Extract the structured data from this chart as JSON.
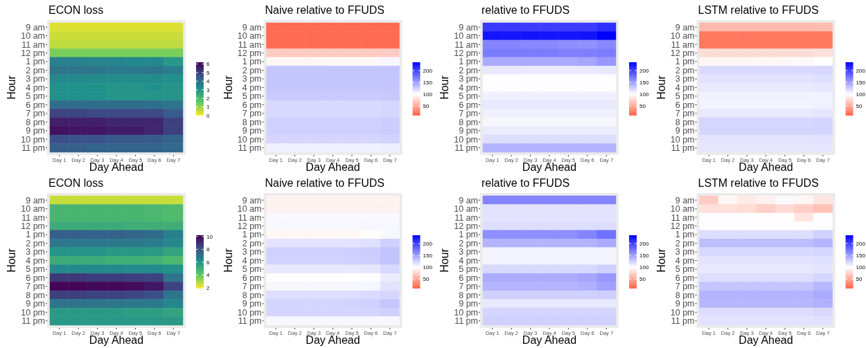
{
  "chart_data": [
    {
      "type": "heatmap",
      "title": "ECON loss",
      "xlabel": "Day Ahead",
      "ylabel": "Hour",
      "categories": [
        "Day 1",
        "Day 2",
        "Day 3",
        "Day 4",
        "Day 5",
        "Day 6",
        "Day 7"
      ],
      "y_categories": [
        "9 am",
        "10 am",
        "11 am",
        "12 pm",
        "1 pm",
        "2 pm",
        "3 pm",
        "4 pm",
        "5 pm",
        "6 pm",
        "7 pm",
        "8 pm",
        "9 pm",
        "10 pm",
        "11 pm"
      ],
      "clim": [
        0,
        6.2
      ],
      "cticks": [
        0,
        1,
        2,
        3,
        4,
        5,
        6
      ],
      "colors": [
        "#fde725",
        "#5ec962",
        "#21918c",
        "#3b528b",
        "#440154"
      ],
      "cells": [
        [
          0.3,
          0.3,
          0.3,
          0.3,
          0.3,
          0.3,
          0.3
        ],
        [
          0.5,
          0.5,
          0.5,
          0.5,
          0.5,
          0.5,
          0.5
        ],
        [
          0.6,
          0.6,
          0.6,
          0.6,
          0.6,
          0.6,
          0.6
        ],
        [
          1.3,
          1.3,
          1.3,
          1.3,
          1.3,
          1.3,
          1.3
        ],
        [
          3.5,
          3.5,
          3.4,
          3.4,
          3.3,
          3.3,
          2.9
        ],
        [
          3.8,
          3.8,
          3.8,
          3.7,
          3.7,
          3.8,
          3.6
        ],
        [
          3.3,
          3.3,
          3.2,
          3.2,
          3.2,
          3.2,
          3.1
        ],
        [
          3.1,
          3.1,
          3.1,
          3.0,
          3.0,
          3.1,
          3.0
        ],
        [
          3.1,
          3.1,
          3.1,
          3.0,
          3.0,
          3.0,
          3.0
        ],
        [
          4.0,
          4.0,
          4.0,
          4.0,
          4.0,
          3.9,
          3.8
        ],
        [
          4.9,
          4.9,
          4.8,
          4.8,
          4.8,
          4.8,
          4.4
        ],
        [
          5.6,
          5.6,
          5.6,
          5.5,
          5.5,
          5.5,
          5.0
        ],
        [
          5.9,
          5.8,
          5.8,
          5.7,
          5.7,
          5.5,
          5.0
        ],
        [
          4.7,
          4.6,
          4.6,
          4.5,
          4.5,
          4.4,
          4.2
        ],
        [
          4.3,
          4.3,
          4.2,
          4.2,
          4.2,
          4.2,
          4.1
        ]
      ]
    },
    {
      "type": "heatmap",
      "title": "Naive relative to FFUDS",
      "xlabel": "Day Ahead",
      "ylabel": "Hour",
      "categories": [
        "Day 1",
        "Day 2",
        "Day 3",
        "Day 4",
        "Day 5",
        "Day 6",
        "Day 7"
      ],
      "y_categories": [
        "9 am",
        "10 am",
        "11 am",
        "12 pm",
        "1 pm",
        "2 pm",
        "3 pm",
        "4 pm",
        "5 pm",
        "6 pm",
        "7 pm",
        "8 pm",
        "9 pm",
        "10 pm",
        "11 pm"
      ],
      "clim": [
        10,
        235
      ],
      "cticks": [
        50,
        100,
        150,
        200
      ],
      "colors": [
        "#ff6347",
        "#ffffff",
        "#0000ff"
      ],
      "cells": [
        [
          15,
          15,
          15,
          15,
          15,
          15,
          15
        ],
        [
          15,
          15,
          15,
          15,
          15,
          15,
          15
        ],
        [
          15,
          15,
          15,
          15,
          15,
          15,
          15
        ],
        [
          70,
          70,
          70,
          70,
          70,
          70,
          70
        ],
        [
          95,
          95,
          95,
          96,
          96,
          96,
          104
        ],
        [
          130,
          130,
          130,
          130,
          130,
          130,
          131
        ],
        [
          130,
          130,
          130,
          130,
          130,
          130,
          131
        ],
        [
          130,
          130,
          130,
          130,
          130,
          130,
          130
        ],
        [
          128,
          128,
          128,
          128,
          128,
          128,
          129
        ],
        [
          120,
          120,
          120,
          120,
          120,
          120,
          122
        ],
        [
          120,
          120,
          120,
          120,
          120,
          120,
          122
        ],
        [
          125,
          125,
          125,
          125,
          125,
          125,
          127
        ],
        [
          125,
          125,
          125,
          125,
          125,
          125,
          127
        ],
        [
          122,
          122,
          122,
          122,
          122,
          122,
          124
        ],
        [
          108,
          108,
          108,
          108,
          108,
          108,
          109
        ]
      ]
    },
    {
      "type": "heatmap",
      "title": "relative to FFUDS",
      "xlabel": "Day Ahead",
      "ylabel": "Hour",
      "categories": [
        "Day 1",
        "Day 2",
        "Day 3",
        "Day 4",
        "Day 5",
        "Day 6",
        "Day 7"
      ],
      "y_categories": [
        "9 am",
        "10 am",
        "11 am",
        "12 pm",
        "1 pm",
        "2 pm",
        "3 pm",
        "4 pm",
        "5 pm",
        "6 pm",
        "7 pm",
        "8 pm",
        "9 pm",
        "10 pm",
        "11 pm"
      ],
      "clim": [
        10,
        235
      ],
      "cticks": [
        50,
        100,
        150,
        200
      ],
      "colors": [
        "#ff6347",
        "#ffffff",
        "#0000ff"
      ],
      "cells": [
        [
          205,
          205,
          203,
          203,
          203,
          203,
          210
        ],
        [
          225,
          225,
          225,
          224,
          224,
          225,
          235
        ],
        [
          165,
          165,
          163,
          163,
          160,
          158,
          163
        ],
        [
          170,
          170,
          170,
          170,
          168,
          168,
          170
        ],
        [
          145,
          145,
          145,
          145,
          145,
          147,
          155
        ],
        [
          112,
          112,
          111,
          111,
          111,
          111,
          112
        ],
        [
          101,
          101,
          101,
          101,
          101,
          101,
          101
        ],
        [
          101,
          101,
          101,
          101,
          101,
          101,
          101
        ],
        [
          108,
          108,
          108,
          108,
          108,
          108,
          108
        ],
        [
          112,
          112,
          112,
          112,
          112,
          112,
          112
        ],
        [
          108,
          108,
          108,
          108,
          108,
          108,
          108
        ],
        [
          104,
          104,
          104,
          104,
          104,
          104,
          104
        ],
        [
          110,
          110,
          110,
          110,
          110,
          110,
          110
        ],
        [
          118,
          118,
          118,
          118,
          118,
          118,
          118
        ],
        [
          140,
          140,
          140,
          140,
          140,
          140,
          140
        ]
      ]
    },
    {
      "type": "heatmap",
      "title": "LSTM relative to FFUDS",
      "xlabel": "Day Ahead",
      "ylabel": "Hour",
      "categories": [
        "Day 1",
        "Day 2",
        "Day 3",
        "Day 4",
        "Day 5",
        "Day 6",
        "Day 7"
      ],
      "y_categories": [
        "9 am",
        "10 am",
        "11 am",
        "12 pm",
        "1 pm",
        "2 pm",
        "3 pm",
        "4 pm",
        "5 pm",
        "6 pm",
        "7 pm",
        "8 pm",
        "9 pm",
        "10 pm",
        "11 pm"
      ],
      "clim": [
        10,
        235
      ],
      "cticks": [
        50,
        100,
        150,
        200
      ],
      "colors": [
        "#ff6347",
        "#ffffff",
        "#0000ff"
      ],
      "cells": [
        [
          60,
          60,
          60,
          60,
          60,
          60,
          62
        ],
        [
          22,
          22,
          22,
          22,
          22,
          22,
          22
        ],
        [
          22,
          22,
          22,
          22,
          22,
          22,
          22
        ],
        [
          80,
          80,
          80,
          80,
          80,
          80,
          82
        ],
        [
          95,
          95,
          95,
          96,
          96,
          97,
          100
        ],
        [
          120,
          120,
          120,
          120,
          120,
          120,
          121
        ],
        [
          115,
          115,
          115,
          115,
          115,
          115,
          117
        ],
        [
          112,
          112,
          112,
          112,
          112,
          112,
          113
        ],
        [
          107,
          107,
          107,
          107,
          107,
          107,
          108
        ],
        [
          106,
          106,
          106,
          106,
          106,
          106,
          107
        ],
        [
          112,
          112,
          112,
          112,
          112,
          112,
          114
        ],
        [
          122,
          122,
          122,
          122,
          122,
          122,
          123
        ],
        [
          122,
          122,
          122,
          122,
          122,
          122,
          123
        ],
        [
          115,
          115,
          115,
          115,
          115,
          115,
          116
        ],
        [
          113,
          113,
          113,
          113,
          113,
          113,
          114
        ]
      ]
    },
    {
      "type": "heatmap",
      "title": "ECON loss",
      "xlabel": "Day Ahead",
      "ylabel": "Hour",
      "categories": [
        "Day 1",
        "Day 2",
        "Day 3",
        "Day 4",
        "Day 5",
        "Day 6",
        "Day 7"
      ],
      "y_categories": [
        "9 am",
        "10 am",
        "11 am",
        "12 pm",
        "1 pm",
        "2 pm",
        "3 pm",
        "4 pm",
        "5 pm",
        "6 pm",
        "7 pm",
        "8 pm",
        "9 pm",
        "10 pm",
        "11 pm"
      ],
      "clim": [
        1.9,
        10.2
      ],
      "cticks": [
        2,
        4,
        6,
        8,
        10
      ],
      "colors": [
        "#fde725",
        "#5ec962",
        "#21918c",
        "#3b528b",
        "#440154"
      ],
      "cells": [
        [
          2.6,
          2.6,
          2.6,
          2.6,
          2.6,
          2.6,
          2.6
        ],
        [
          4.7,
          4.7,
          4.7,
          4.7,
          4.7,
          4.6,
          4.5
        ],
        [
          4.7,
          4.7,
          4.7,
          4.7,
          4.7,
          4.6,
          4.5
        ],
        [
          5.1,
          5.1,
          5.1,
          5.1,
          5.0,
          5.0,
          5.0
        ],
        [
          7.7,
          7.7,
          7.6,
          7.6,
          7.5,
          7.3,
          6.6
        ],
        [
          6.9,
          6.9,
          6.9,
          6.8,
          6.8,
          6.7,
          6.4
        ],
        [
          5.9,
          5.9,
          5.9,
          5.8,
          5.8,
          5.7,
          5.4
        ],
        [
          5.1,
          5.1,
          5.1,
          5.0,
          5.0,
          4.9,
          4.6
        ],
        [
          6.3,
          6.3,
          6.3,
          6.3,
          6.2,
          6.2,
          6.0
        ],
        [
          8.8,
          8.8,
          8.7,
          8.7,
          8.6,
          8.5,
          7.0
        ],
        [
          10.1,
          10.1,
          10.0,
          10.0,
          9.9,
          9.6,
          8.5
        ],
        [
          8.6,
          8.6,
          8.5,
          8.5,
          8.4,
          8.2,
          7.0
        ],
        [
          7.0,
          7.0,
          7.0,
          6.9,
          6.9,
          6.8,
          6.4
        ],
        [
          5.7,
          5.7,
          5.7,
          5.7,
          5.6,
          5.6,
          5.4
        ],
        [
          5.8,
          5.8,
          5.8,
          5.8,
          5.8,
          5.8,
          5.7
        ]
      ]
    },
    {
      "type": "heatmap",
      "title": "Naive relative to FFUDS",
      "xlabel": "Day Ahead",
      "ylabel": "Hour",
      "categories": [
        "Day 1",
        "Day 2",
        "Day 3",
        "Day 4",
        "Day 5",
        "Day 6",
        "Day 7"
      ],
      "y_categories": [
        "9 am",
        "10 am",
        "11 am",
        "12 pm",
        "1 pm",
        "2 pm",
        "3 pm",
        "4 pm",
        "5 pm",
        "6 pm",
        "7 pm",
        "8 pm",
        "9 pm",
        "10 pm",
        "11 pm"
      ],
      "clim": [
        10,
        235
      ],
      "cticks": [
        50,
        100,
        150,
        200
      ],
      "colors": [
        "#ff6347",
        "#ffffff",
        "#0000ff"
      ],
      "cells": [
        [
          93,
          93,
          93,
          93,
          93,
          93,
          93
        ],
        [
          92,
          92,
          92,
          92,
          92,
          92,
          92
        ],
        [
          103,
          103,
          103,
          103,
          103,
          103,
          103
        ],
        [
          104,
          104,
          104,
          104,
          104,
          104,
          104
        ],
        [
          95,
          95,
          95,
          96,
          96,
          98,
          104
        ],
        [
          115,
          115,
          115,
          115,
          115,
          117,
          125
        ],
        [
          125,
          125,
          125,
          125,
          126,
          127,
          132
        ],
        [
          124,
          124,
          124,
          124,
          125,
          126,
          132
        ],
        [
          112,
          112,
          112,
          112,
          112,
          113,
          120
        ],
        [
          99,
          99,
          99,
          99,
          100,
          101,
          110
        ],
        [
          104,
          104,
          104,
          104,
          104,
          105,
          115
        ],
        [
          118,
          118,
          118,
          118,
          118,
          119,
          122
        ],
        [
          123,
          123,
          123,
          123,
          124,
          125,
          130
        ],
        [
          122,
          122,
          122,
          122,
          122,
          123,
          125
        ],
        [
          104,
          104,
          104,
          104,
          104,
          104,
          104
        ]
      ]
    },
    {
      "type": "heatmap",
      "title": "relative to FFUDS",
      "xlabel": "Day Ahead",
      "ylabel": "Hour",
      "categories": [
        "Day 1",
        "Day 2",
        "Day 3",
        "Day 4",
        "Day 5",
        "Day 6",
        "Day 7"
      ],
      "y_categories": [
        "9 am",
        "10 am",
        "11 am",
        "12 pm",
        "1 pm",
        "2 pm",
        "3 pm",
        "4 pm",
        "5 pm",
        "6 pm",
        "7 pm",
        "8 pm",
        "9 pm",
        "10 pm",
        "11 pm"
      ],
      "clim": [
        10,
        235
      ],
      "cticks": [
        50,
        100,
        150,
        200
      ],
      "colors": [
        "#ff6347",
        "#ffffff",
        "#0000ff"
      ],
      "cells": [
        [
          165,
          165,
          165,
          165,
          165,
          165,
          165
        ],
        [
          115,
          115,
          115,
          115,
          115,
          115,
          115
        ],
        [
          115,
          115,
          115,
          115,
          115,
          115,
          115
        ],
        [
          118,
          118,
          118,
          118,
          118,
          118,
          118
        ],
        [
          160,
          160,
          160,
          160,
          160,
          165,
          175
        ],
        [
          140,
          140,
          140,
          140,
          140,
          141,
          145
        ],
        [
          106,
          106,
          106,
          106,
          106,
          106,
          106
        ],
        [
          106,
          106,
          106,
          106,
          106,
          106,
          106
        ],
        [
          120,
          120,
          120,
          120,
          120,
          121,
          125
        ],
        [
          145,
          145,
          145,
          145,
          145,
          147,
          155
        ],
        [
          140,
          140,
          140,
          140,
          140,
          142,
          150
        ],
        [
          125,
          125,
          125,
          125,
          125,
          125,
          126
        ],
        [
          112,
          112,
          112,
          112,
          112,
          112,
          112
        ],
        [
          122,
          122,
          122,
          122,
          122,
          122,
          122
        ],
        [
          125,
          125,
          125,
          125,
          125,
          125,
          125
        ]
      ]
    },
    {
      "type": "heatmap",
      "title": "LSTM relative to FFUDS",
      "xlabel": "Day Ahead",
      "ylabel": "Hour",
      "categories": [
        "Day 1",
        "Day 2",
        "Day 3",
        "Day 4",
        "Day 5",
        "Day 6",
        "Day 7"
      ],
      "y_categories": [
        "9 am",
        "10 am",
        "11 am",
        "12 pm",
        "1 pm",
        "2 pm",
        "3 pm",
        "4 pm",
        "5 pm",
        "6 pm",
        "7 pm",
        "8 pm",
        "9 pm",
        "10 pm",
        "11 pm"
      ],
      "clim": [
        10,
        235
      ],
      "cticks": [
        50,
        100,
        150,
        200
      ],
      "colors": [
        "#ff6347",
        "#ffffff",
        "#0000ff"
      ],
      "cells": [
        [
          70,
          95,
          88,
          92,
          103,
          95,
          85
        ],
        [
          82,
          82,
          80,
          72,
          78,
          72,
          65
        ],
        [
          101,
          101,
          101,
          99,
          99,
          85,
          101
        ],
        [
          101,
          101,
          101,
          101,
          101,
          101,
          101
        ],
        [
          118,
          118,
          118,
          118,
          118,
          118,
          125
        ],
        [
          135,
          135,
          135,
          135,
          135,
          135,
          140
        ],
        [
          120,
          120,
          120,
          120,
          120,
          120,
          122
        ],
        [
          115,
          115,
          115,
          115,
          115,
          115,
          117
        ],
        [
          112,
          112,
          112,
          112,
          112,
          112,
          114
        ],
        [
          118,
          118,
          118,
          118,
          118,
          118,
          122
        ],
        [
          130,
          130,
          130,
          130,
          130,
          130,
          138
        ],
        [
          140,
          140,
          140,
          140,
          140,
          140,
          145
        ],
        [
          138,
          138,
          138,
          138,
          138,
          138,
          142
        ],
        [
          118,
          118,
          118,
          118,
          118,
          118,
          120
        ],
        [
          115,
          115,
          115,
          115,
          115,
          115,
          116
        ]
      ]
    }
  ]
}
